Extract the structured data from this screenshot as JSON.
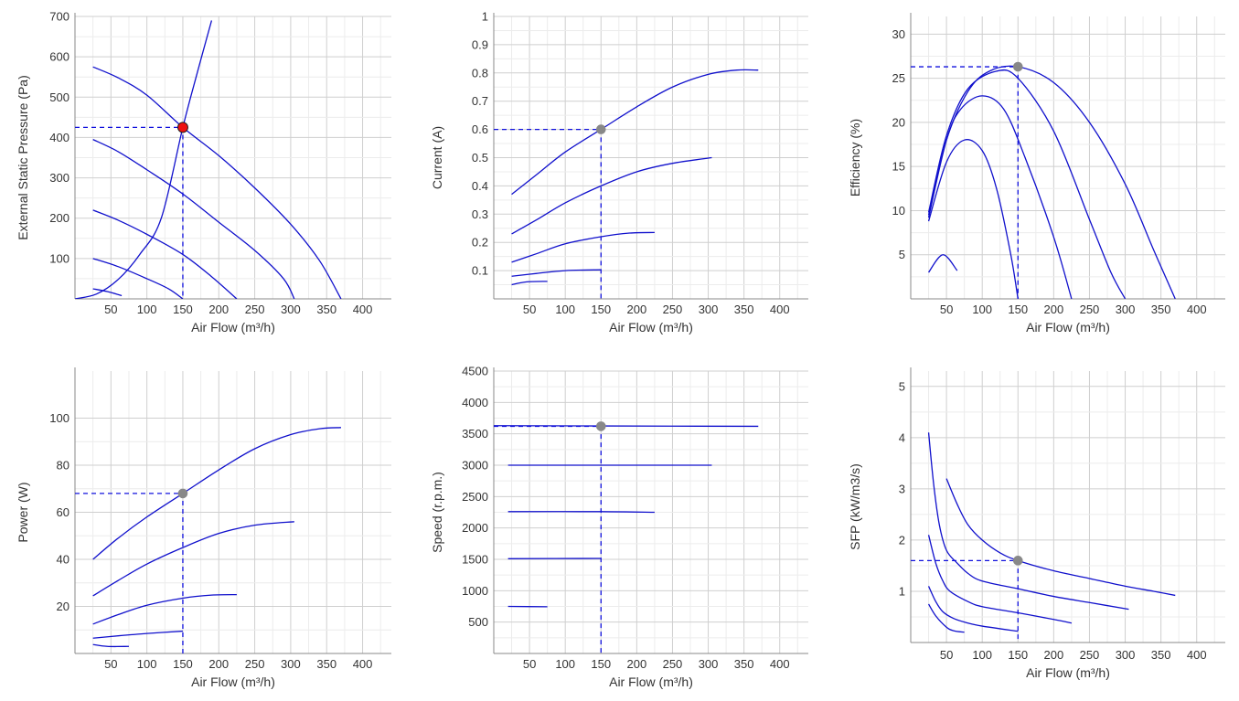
{
  "colors": {
    "curve": "#1010cc",
    "guide": "#1010dd",
    "op_primary": "#ee1111",
    "op_secondary": "#888888"
  },
  "chart_data": [
    {
      "type": "line",
      "xlabel": "Air Flow (m³/h)",
      "ylabel": "External Static Pressure (Pa)",
      "xlim": [
        0,
        440
      ],
      "ylim": [
        0,
        700
      ],
      "xticks": [
        50,
        100,
        150,
        200,
        250,
        300,
        350,
        400
      ],
      "yticks": [
        100,
        200,
        300,
        400,
        500,
        600,
        700
      ],
      "operating_point": {
        "x": 150,
        "y": 425,
        "color": "#ee1111"
      },
      "series": [
        {
          "points": [
            [
              25,
              575
            ],
            [
              60,
              548
            ],
            [
              100,
              505
            ],
            [
              150,
              425
            ],
            [
              200,
              355
            ],
            [
              250,
              275
            ],
            [
              300,
              185
            ],
            [
              340,
              95
            ],
            [
              370,
              0
            ]
          ]
        },
        {
          "points": [
            [
              25,
              395
            ],
            [
              60,
              365
            ],
            [
              100,
              320
            ],
            [
              150,
              260
            ],
            [
              200,
              190
            ],
            [
              250,
              120
            ],
            [
              290,
              50
            ],
            [
              305,
              0
            ]
          ]
        },
        {
          "points": [
            [
              25,
              220
            ],
            [
              60,
              195
            ],
            [
              100,
              160
            ],
            [
              150,
              110
            ],
            [
              190,
              55
            ],
            [
              225,
              0
            ]
          ]
        },
        {
          "points": [
            [
              25,
              100
            ],
            [
              60,
              80
            ],
            [
              100,
              50
            ],
            [
              130,
              25
            ],
            [
              150,
              0
            ]
          ]
        },
        {
          "points": [
            [
              25,
              25
            ],
            [
              45,
              18
            ],
            [
              65,
              8
            ]
          ]
        },
        {
          "points": [
            [
              0,
              0
            ],
            [
              30,
              12
            ],
            [
              60,
              48
            ],
            [
              90,
              110
            ],
            [
              120,
              200
            ],
            [
              150,
              425
            ],
            [
              170,
              560
            ],
            [
              190,
              690
            ]
          ]
        }
      ]
    },
    {
      "type": "line",
      "xlabel": "Air Flow (m³/h)",
      "ylabel": "Current (A)",
      "xlim": [
        0,
        440
      ],
      "ylim": [
        0,
        1
      ],
      "xticks": [
        50,
        100,
        150,
        200,
        250,
        300,
        350,
        400
      ],
      "yticks": [
        0.1,
        0.2,
        0.3,
        0.4,
        0.5,
        0.6,
        0.7,
        0.8,
        0.9,
        1
      ],
      "operating_point": {
        "x": 150,
        "y": 0.6,
        "color": "#888888"
      },
      "series": [
        {
          "points": [
            [
              25,
              0.37
            ],
            [
              60,
              0.44
            ],
            [
              100,
              0.52
            ],
            [
              150,
              0.6
            ],
            [
              200,
              0.68
            ],
            [
              250,
              0.75
            ],
            [
              300,
              0.795
            ],
            [
              340,
              0.81
            ],
            [
              370,
              0.81
            ]
          ]
        },
        {
          "points": [
            [
              25,
              0.23
            ],
            [
              60,
              0.28
            ],
            [
              100,
              0.34
            ],
            [
              150,
              0.4
            ],
            [
              200,
              0.45
            ],
            [
              250,
              0.48
            ],
            [
              305,
              0.5
            ]
          ]
        },
        {
          "points": [
            [
              25,
              0.13
            ],
            [
              60,
              0.16
            ],
            [
              100,
              0.195
            ],
            [
              150,
              0.22
            ],
            [
              190,
              0.233
            ],
            [
              225,
              0.235
            ]
          ]
        },
        {
          "points": [
            [
              25,
              0.08
            ],
            [
              60,
              0.09
            ],
            [
              100,
              0.1
            ],
            [
              150,
              0.103
            ]
          ]
        },
        {
          "points": [
            [
              25,
              0.05
            ],
            [
              45,
              0.06
            ],
            [
              75,
              0.062
            ]
          ]
        }
      ]
    },
    {
      "type": "line",
      "xlabel": "Air Flow (m³/h)",
      "ylabel": "Efficiency (%)",
      "xlim": [
        0,
        440
      ],
      "ylim": [
        0,
        32
      ],
      "xticks": [
        50,
        100,
        150,
        200,
        250,
        300,
        350,
        400
      ],
      "yticks": [
        5,
        10,
        15,
        20,
        25,
        30
      ],
      "operating_point": {
        "x": 150,
        "y": 26.3,
        "color": "#888888"
      },
      "series": [
        {
          "points": [
            [
              25,
              9.5
            ],
            [
              50,
              18
            ],
            [
              80,
              23.5
            ],
            [
              110,
              25.8
            ],
            [
              150,
              26.3
            ],
            [
              200,
              24.5
            ],
            [
              250,
              20
            ],
            [
              300,
              13
            ],
            [
              340,
              5.5
            ],
            [
              370,
              0
            ]
          ]
        },
        {
          "points": [
            [
              25,
              9.8
            ],
            [
              50,
              18.5
            ],
            [
              80,
              23.8
            ],
            [
              120,
              25.8
            ],
            [
              150,
              25
            ],
            [
              200,
              19
            ],
            [
              250,
              9
            ],
            [
              280,
              3
            ],
            [
              300,
              0
            ]
          ]
        },
        {
          "points": [
            [
              25,
              9.2
            ],
            [
              50,
              18
            ],
            [
              70,
              21.5
            ],
            [
              100,
              23
            ],
            [
              130,
              21.5
            ],
            [
              160,
              16
            ],
            [
              200,
              7
            ],
            [
              225,
              0
            ]
          ]
        },
        {
          "points": [
            [
              25,
              8.8
            ],
            [
              50,
              15.5
            ],
            [
              75,
              18
            ],
            [
              100,
              16.8
            ],
            [
              120,
              12.5
            ],
            [
              140,
              5
            ],
            [
              150,
              0
            ]
          ]
        },
        {
          "points": [
            [
              25,
              3
            ],
            [
              45,
              5
            ],
            [
              65,
              3.2
            ]
          ]
        }
      ]
    },
    {
      "type": "line",
      "xlabel": "Air Flow (m³/h)",
      "ylabel": "Power (W)",
      "xlim": [
        0,
        440
      ],
      "ylim": [
        0,
        120
      ],
      "xticks": [
        50,
        100,
        150,
        200,
        250,
        300,
        350,
        400
      ],
      "yticks": [
        20,
        40,
        60,
        80,
        100
      ],
      "operating_point": {
        "x": 150,
        "y": 68,
        "color": "#888888"
      },
      "series": [
        {
          "points": [
            [
              25,
              40
            ],
            [
              60,
              49
            ],
            [
              100,
              58
            ],
            [
              150,
              68
            ],
            [
              200,
              78
            ],
            [
              250,
              87
            ],
            [
              300,
              93
            ],
            [
              340,
              95.5
            ],
            [
              370,
              96
            ]
          ]
        },
        {
          "points": [
            [
              25,
              24.5
            ],
            [
              60,
              31
            ],
            [
              100,
              38
            ],
            [
              150,
              45
            ],
            [
              200,
              51
            ],
            [
              250,
              54.5
            ],
            [
              305,
              56
            ]
          ]
        },
        {
          "points": [
            [
              25,
              12.5
            ],
            [
              60,
              16.5
            ],
            [
              100,
              20.5
            ],
            [
              150,
              23.5
            ],
            [
              190,
              24.8
            ],
            [
              225,
              25
            ]
          ]
        },
        {
          "points": [
            [
              25,
              6.5
            ],
            [
              60,
              7.5
            ],
            [
              100,
              8.5
            ],
            [
              150,
              9.5
            ]
          ]
        },
        {
          "points": [
            [
              25,
              3.8
            ],
            [
              45,
              3
            ],
            [
              75,
              3
            ]
          ]
        }
      ]
    },
    {
      "type": "line",
      "xlabel": "Air Flow (m³/h)",
      "ylabel": "Speed (r.p.m.)",
      "xlim": [
        0,
        440
      ],
      "ylim": [
        0,
        4500
      ],
      "xticks": [
        50,
        100,
        150,
        200,
        250,
        300,
        350,
        400
      ],
      "yticks": [
        500,
        1000,
        1500,
        2000,
        2500,
        3000,
        3500,
        4000,
        4500
      ],
      "operating_point": {
        "x": 150,
        "y": 3620,
        "color": "#888888"
      },
      "series": [
        {
          "points": [
            [
              0,
              3630
            ],
            [
              150,
              3625
            ],
            [
              370,
              3620
            ]
          ]
        },
        {
          "points": [
            [
              20,
              3000
            ],
            [
              150,
              3000
            ],
            [
              305,
              3000
            ]
          ]
        },
        {
          "points": [
            [
              20,
              2260
            ],
            [
              150,
              2260
            ],
            [
              225,
              2250
            ]
          ]
        },
        {
          "points": [
            [
              20,
              1510
            ],
            [
              150,
              1515
            ]
          ]
        },
        {
          "points": [
            [
              20,
              750
            ],
            [
              75,
              745
            ]
          ]
        }
      ]
    },
    {
      "type": "line",
      "xlabel": "Air Flow (m³/h)",
      "ylabel": "SFP (kW/m3/s)",
      "xlim": [
        0,
        440
      ],
      "ylim": [
        0,
        5.3
      ],
      "xticks": [
        50,
        100,
        150,
        200,
        250,
        300,
        350,
        400
      ],
      "yticks": [
        1,
        2,
        3,
        4,
        5
      ],
      "operating_point": {
        "x": 150,
        "y": 1.6,
        "color": "#888888"
      },
      "series": [
        {
          "points": [
            [
              50,
              3.2
            ],
            [
              65,
              2.7
            ],
            [
              80,
              2.3
            ],
            [
              100,
              2.0
            ],
            [
              125,
              1.75
            ],
            [
              150,
              1.6
            ],
            [
              200,
              1.4
            ],
            [
              250,
              1.25
            ],
            [
              300,
              1.1
            ],
            [
              340,
              1.0
            ],
            [
              370,
              0.92
            ]
          ]
        },
        {
          "points": [
            [
              25,
              4.1
            ],
            [
              32,
              3.1
            ],
            [
              40,
              2.3
            ],
            [
              50,
              1.8
            ],
            [
              65,
              1.55
            ],
            [
              80,
              1.35
            ],
            [
              100,
              1.2
            ],
            [
              150,
              1.05
            ],
            [
              200,
              0.9
            ],
            [
              250,
              0.78
            ],
            [
              305,
              0.65
            ]
          ]
        },
        {
          "points": [
            [
              25,
              2.1
            ],
            [
              35,
              1.55
            ],
            [
              45,
              1.2
            ],
            [
              55,
              1.0
            ],
            [
              80,
              0.8
            ],
            [
              100,
              0.7
            ],
            [
              150,
              0.58
            ],
            [
              200,
              0.45
            ],
            [
              225,
              0.38
            ]
          ]
        },
        {
          "points": [
            [
              25,
              1.1
            ],
            [
              35,
              0.8
            ],
            [
              45,
              0.6
            ],
            [
              60,
              0.47
            ],
            [
              80,
              0.38
            ],
            [
              100,
              0.32
            ],
            [
              150,
              0.22
            ]
          ]
        },
        {
          "points": [
            [
              25,
              0.75
            ],
            [
              35,
              0.52
            ],
            [
              50,
              0.3
            ],
            [
              60,
              0.23
            ],
            [
              75,
              0.2
            ]
          ]
        }
      ]
    }
  ]
}
